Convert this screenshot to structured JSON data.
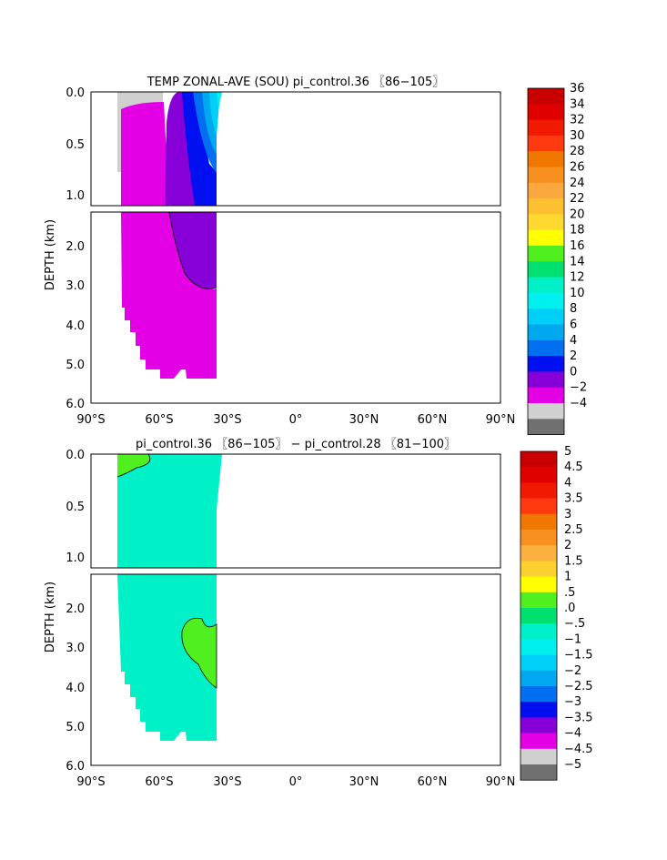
{
  "chart_data": [
    {
      "type": "heatmap",
      "title": "TEMP ZONAL-AVE (SOU) pi_control.36 〖86−105〗",
      "ylabel": "DEPTH (km)",
      "xticks": [
        "90°S",
        "60°S",
        "30°S",
        "0°",
        "30°N",
        "60°N",
        "90°N"
      ],
      "xlim": [
        -90,
        90
      ],
      "yticks_upper": [
        "0.0",
        "0.5",
        "1.0"
      ],
      "yticks_lower": [
        "2.0",
        "3.0",
        "4.0",
        "5.0",
        "6.0"
      ],
      "ylim": [
        0,
        6
      ],
      "colorbar": {
        "labels": [
          "36",
          "34",
          "32",
          "30",
          "28",
          "26",
          "24",
          "22",
          "20",
          "18",
          "16",
          "14",
          "12",
          "10",
          "8",
          "6",
          "4",
          "2",
          "0",
          "−2",
          "−4"
        ],
        "colors": [
          "#c80000",
          "#e00000",
          "#f01a00",
          "#ff3a10",
          "#f07800",
          "#f89020",
          "#fca840",
          "#fcc030",
          "#ffd830",
          "#ffff00",
          "#50f020",
          "#00e070",
          "#00f0c8",
          "#00f0f0",
          "#00d0f8",
          "#00a8f0",
          "#0070f0",
          "#0010f0",
          "#8800d8",
          "#e400e4",
          "#d0d0d0",
          "#707070"
        ]
      }
    },
    {
      "type": "heatmap",
      "title": "pi_control.36 〖86−105〗 − pi_control.28 〖81−100〗",
      "ylabel": "DEPTH (km)",
      "xticks": [
        "90°S",
        "60°S",
        "30°S",
        "0°",
        "30°N",
        "60°N",
        "90°N"
      ],
      "xlim": [
        -90,
        90
      ],
      "yticks_upper": [
        "0.0",
        "0.5",
        "1.0"
      ],
      "yticks_lower": [
        "2.0",
        "3.0",
        "4.0",
        "5.0",
        "6.0"
      ],
      "ylim": [
        0,
        6
      ],
      "colorbar": {
        "labels": [
          "5",
          "4.5",
          "4",
          "3.5",
          "3",
          "2.5",
          "2",
          "1.5",
          "1",
          ".5",
          ".0",
          "−.5",
          "−1",
          "−1.5",
          "−2",
          "−2.5",
          "−3",
          "−3.5",
          "−4",
          "−4.5",
          "−5"
        ],
        "colors": [
          "#c80000",
          "#e00000",
          "#f01a00",
          "#ff3a10",
          "#f07800",
          "#f89020",
          "#fcb040",
          "#fcd030",
          "#ffff00",
          "#50f020",
          "#00e070",
          "#00f0c8",
          "#00f0f0",
          "#00d0f8",
          "#00a8f0",
          "#0070f0",
          "#0010f0",
          "#8800d8",
          "#e400e4",
          "#d0d0d0",
          "#707070"
        ]
      }
    }
  ]
}
